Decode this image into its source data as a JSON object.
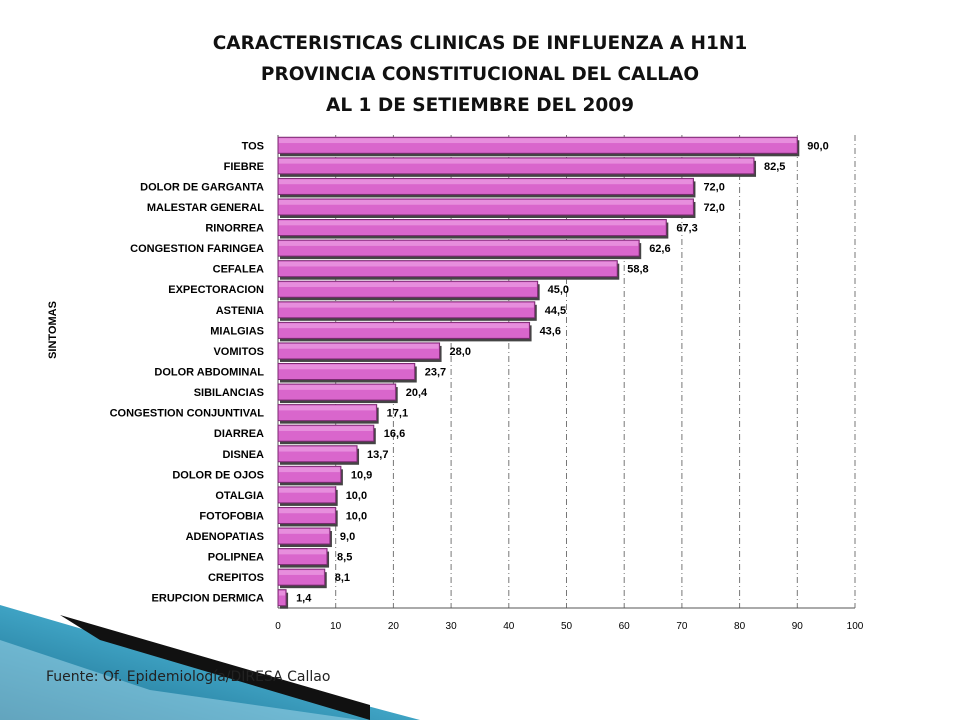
{
  "title_lines": [
    "CARACTERISTICAS CLINICAS DE INFLUENZA A H1N1",
    "PROVINCIA CONSTITUCIONAL DEL CALLAO",
    "AL 1 DE SETIEMBRE DEL 2009"
  ],
  "source": "Fuente: Of. Epidemiología/DIRESA Callao",
  "chart_data": {
    "type": "bar",
    "orientation": "horizontal",
    "ylabel": "SINTOMAS",
    "xlabel": "",
    "xlim": [
      0,
      100
    ],
    "xticks": [
      "0",
      "10",
      "20",
      "30",
      "40",
      "50",
      "60",
      "70",
      "80",
      "90",
      "100"
    ],
    "grid": "vertical dashed",
    "bar_color": "#d966cc",
    "categories": [
      "TOS",
      "FIEBRE",
      "DOLOR DE GARGANTA",
      "MALESTAR GENERAL",
      "RINORREA",
      "CONGESTION FARINGEA",
      "CEFALEA",
      "EXPECTORACION",
      "ASTENIA",
      "MIALGIAS",
      "VOMITOS",
      "DOLOR ABDOMINAL",
      "SIBILANCIAS",
      "CONGESTION CONJUNTIVAL",
      "DIARREA",
      "DISNEA",
      "DOLOR DE OJOS",
      "OTALGIA",
      "FOTOFOBIA",
      "ADENOPATIAS",
      "POLIPNEA",
      "CREPITOS",
      "ERUPCION DERMICA"
    ],
    "values": [
      90.0,
      82.5,
      72.0,
      72.0,
      67.3,
      62.6,
      58.8,
      45.0,
      44.5,
      43.6,
      28.0,
      23.7,
      20.4,
      17.1,
      16.6,
      13.7,
      10.9,
      10.0,
      10.0,
      9.0,
      8.5,
      8.1,
      1.4
    ],
    "value_labels": [
      "90,0",
      "82,5",
      "72,0",
      "72,0",
      "67,3",
      "62,6",
      "58,8",
      "45,0",
      "44,5",
      "43,6",
      "28,0",
      "23,7",
      "20,4",
      "17,1",
      "16,6",
      "13,7",
      "10,9",
      "10,0",
      "10,0",
      "9,0",
      "8,5",
      "8,1",
      "1,4"
    ]
  }
}
